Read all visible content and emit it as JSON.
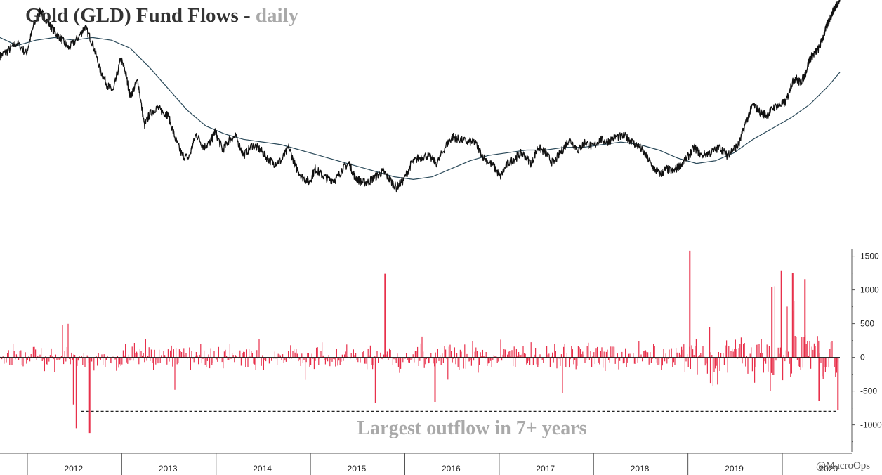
{
  "title": {
    "main": "Gold (GLD) Fund Flows",
    "separator": "-",
    "subtitle": "daily"
  },
  "credit": "@MacroOps",
  "colors": {
    "price": "#111111",
    "moving_average": "#2b4a5a",
    "flows": "#e8304b",
    "annotation": "#a9a9a9",
    "axis": "#555555"
  },
  "chart_data": [
    {
      "type": "line",
      "title": "Gold (GLD) Fund Flows - daily",
      "x_unit": "year",
      "x_range": [
        2011.72,
        2020.62
      ],
      "y_range_approx": [
        100,
        180
      ],
      "axis_labels_visible": false,
      "series": [
        {
          "role": "price",
          "x": [
            2011.72,
            2011.8,
            2011.9,
            2012.0,
            2012.08,
            2012.15,
            2012.22,
            2012.3,
            2012.38,
            2012.45,
            2012.55,
            2012.62,
            2012.7,
            2012.78,
            2012.86,
            2012.92,
            2013.0,
            2013.05,
            2013.1,
            2013.18,
            2013.25,
            2013.3,
            2013.38,
            2013.45,
            2013.5,
            2013.58,
            2013.65,
            2013.72,
            2013.8,
            2013.88,
            2013.95,
            2014.0,
            2014.08,
            2014.15,
            2014.22,
            2014.3,
            2014.4,
            2014.48,
            2014.55,
            2014.62,
            2014.7,
            2014.78,
            2014.85,
            2014.92,
            2015.0,
            2015.06,
            2015.12,
            2015.2,
            2015.28,
            2015.35,
            2015.42,
            2015.48,
            2015.55,
            2015.62,
            2015.7,
            2015.78,
            2015.85,
            2015.92,
            2016.0,
            2016.08,
            2016.15,
            2016.25,
            2016.35,
            2016.45,
            2016.52,
            2016.58,
            2016.68,
            2016.75,
            2016.85,
            2016.95,
            2017.02,
            2017.1,
            2017.18,
            2017.25,
            2017.35,
            2017.42,
            2017.5,
            2017.58,
            2017.68,
            2017.75,
            2017.85,
            2017.92,
            2018.0,
            2018.08,
            2018.15,
            2018.25,
            2018.35,
            2018.42,
            2018.5,
            2018.58,
            2018.65,
            2018.72,
            2018.78,
            2018.85,
            2018.92,
            2019.0,
            2019.08,
            2019.15,
            2019.25,
            2019.35,
            2019.42,
            2019.48,
            2019.55,
            2019.62,
            2019.7,
            2019.78,
            2019.85,
            2019.92,
            2020.0,
            2020.05,
            2020.1,
            2020.15,
            2020.2,
            2020.25,
            2020.3,
            2020.35,
            2020.4,
            2020.45,
            2020.5,
            2020.55,
            2020.58,
            2020.62
          ],
          "y": [
            159,
            161,
            164,
            160,
            171,
            176,
            172,
            168,
            165,
            162,
            166,
            170,
            164,
            154,
            148,
            146,
            158,
            153,
            144,
            150,
            133,
            137,
            140,
            138,
            137,
            128,
            122,
            121,
            130,
            125,
            127,
            131,
            124,
            128,
            129,
            122,
            126,
            124,
            121,
            119,
            120,
            125,
            118,
            114,
            112,
            117,
            115,
            113,
            113,
            117,
            119,
            114,
            112,
            112,
            114,
            116,
            113,
            110,
            113,
            119,
            121,
            122,
            119,
            126,
            129,
            128,
            127,
            127,
            121,
            118,
            114,
            119,
            121,
            123,
            119,
            125,
            123,
            119,
            124,
            128,
            124,
            127,
            125,
            128,
            127,
            129,
            129,
            127,
            125,
            121,
            117,
            115,
            117,
            116,
            118,
            121,
            125,
            122,
            123,
            125,
            122,
            124,
            126,
            134,
            141,
            138,
            137,
            140,
            141,
            142,
            148,
            151,
            149,
            152,
            158,
            160,
            162,
            167,
            172,
            176,
            178,
            180
          ],
          "note": "approximate reading; no y tick labels printed"
        },
        {
          "role": "moving_average",
          "x": [
            2011.72,
            2011.9,
            2012.1,
            2012.3,
            2012.5,
            2012.7,
            2012.9,
            2013.1,
            2013.3,
            2013.5,
            2013.7,
            2013.9,
            2014.1,
            2014.3,
            2014.5,
            2014.7,
            2014.9,
            2015.1,
            2015.3,
            2015.5,
            2015.7,
            2015.9,
            2016.1,
            2016.3,
            2016.5,
            2016.7,
            2016.9,
            2017.1,
            2017.3,
            2017.5,
            2017.7,
            2017.9,
            2018.1,
            2018.3,
            2018.5,
            2018.7,
            2018.9,
            2019.1,
            2019.3,
            2019.5,
            2019.7,
            2019.9,
            2020.1,
            2020.3,
            2020.5,
            2020.62
          ],
          "y": [
            166,
            163,
            165,
            166,
            165,
            166,
            165,
            162,
            155,
            147,
            139,
            133,
            130,
            128,
            127,
            126,
            124,
            122,
            120,
            118,
            116,
            114,
            113,
            114,
            117,
            120,
            122,
            123,
            124,
            124,
            125,
            125,
            126,
            127,
            126,
            124,
            121,
            119,
            120,
            123,
            128,
            132,
            136,
            141,
            148,
            153
          ]
        }
      ]
    },
    {
      "type": "bar",
      "title": "",
      "x_unit": "year",
      "x_range": [
        2011.72,
        2020.62
      ],
      "ylim": [
        -1400,
        1600
      ],
      "ytick_values": [
        1500,
        1000,
        500,
        0,
        -500,
        -1000
      ],
      "ytick_labels": [
        "1500",
        "1000",
        "500",
        "0",
        "-500",
        "-1000"
      ],
      "xtick_labels": [
        "2012",
        "2013",
        "2014",
        "2015",
        "2016",
        "2017",
        "2018",
        "2019",
        "2020"
      ],
      "xtick_positions": [
        2012.0,
        2013.0,
        2014.0,
        2015.0,
        2016.0,
        2017.0,
        2018.0,
        2019.0,
        2020.0
      ],
      "grid": false,
      "notable_values": [
        {
          "x": 2012.53,
          "value": -1050
        },
        {
          "x": 2012.67,
          "value": -1120
        },
        {
          "x": 2012.5,
          "value": -700
        },
        {
          "x": 2015.8,
          "value": 1240
        },
        {
          "x": 2015.7,
          "value": -680
        },
        {
          "x": 2016.33,
          "value": -660
        },
        {
          "x": 2019.03,
          "value": 1580
        },
        {
          "x": 2019.25,
          "value": -380
        },
        {
          "x": 2020.0,
          "value": 1290
        },
        {
          "x": 2020.12,
          "value": 1250
        },
        {
          "x": 2020.25,
          "value": 1160
        },
        {
          "x": 2020.4,
          "value": -650
        },
        {
          "x": 2020.6,
          "value": -780
        },
        {
          "x": 2019.9,
          "value": 1040
        }
      ],
      "reference_line": {
        "value": -800,
        "x_start": 2012.58,
        "x_end": 2020.6,
        "style": "dashed"
      },
      "annotations": [
        "Largest outflow in 7+ years"
      ]
    }
  ]
}
